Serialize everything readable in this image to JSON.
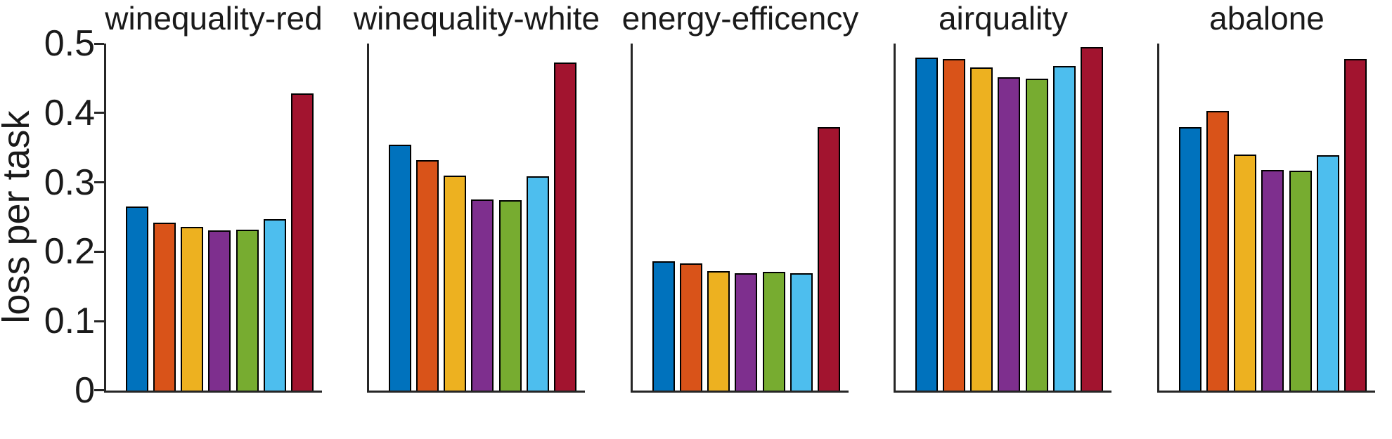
{
  "figure": {
    "ylabel": "loss per task",
    "yticks": [
      "0.5",
      "0.4",
      "0.3",
      "0.2",
      "0.1",
      "0"
    ]
  },
  "palette": {
    "bar_colors": [
      "#0072BD",
      "#D95319",
      "#EDB120",
      "#7E2F8E",
      "#77AC30",
      "#4DBEEE",
      "#A2142F"
    ],
    "bar_edge_color": "#000000",
    "axis_color": "#262626",
    "text_color": "#1a1a1a"
  },
  "chart_data": [
    {
      "type": "bar",
      "title": "winequality-red",
      "values": [
        0.265,
        0.242,
        0.236,
        0.231,
        0.232,
        0.247,
        0.428
      ],
      "ylabel": "loss per task",
      "ylim": [
        0,
        0.5
      ],
      "yticks": [
        0,
        0.1,
        0.2,
        0.3,
        0.4,
        0.5
      ],
      "grid": false,
      "legend": "none"
    },
    {
      "type": "bar",
      "title": "winequality-white",
      "values": [
        0.354,
        0.332,
        0.31,
        0.275,
        0.274,
        0.309,
        0.473
      ],
      "ylabel": "loss per task",
      "ylim": [
        0,
        0.5
      ],
      "yticks": [
        0,
        0.1,
        0.2,
        0.3,
        0.4,
        0.5
      ],
      "grid": false,
      "legend": "none"
    },
    {
      "type": "bar",
      "title": "energy-efficency",
      "values": [
        0.186,
        0.183,
        0.172,
        0.169,
        0.171,
        0.169,
        0.38
      ],
      "ylabel": "loss per task",
      "ylim": [
        0,
        0.5
      ],
      "yticks": [
        0,
        0.1,
        0.2,
        0.3,
        0.4,
        0.5
      ],
      "grid": false,
      "legend": "none"
    },
    {
      "type": "bar",
      "title": "airquality",
      "values": [
        0.48,
        0.478,
        0.466,
        0.451,
        0.449,
        0.468,
        0.495
      ],
      "ylabel": "loss per task",
      "ylim": [
        0,
        0.5
      ],
      "yticks": [
        0,
        0.1,
        0.2,
        0.3,
        0.4,
        0.5
      ],
      "grid": false,
      "legend": "none"
    },
    {
      "type": "bar",
      "title": "abalone",
      "values": [
        0.38,
        0.403,
        0.34,
        0.318,
        0.317,
        0.339,
        0.478
      ],
      "ylabel": "loss per task",
      "ylim": [
        0,
        0.5
      ],
      "yticks": [
        0,
        0.1,
        0.2,
        0.3,
        0.4,
        0.5
      ],
      "grid": false,
      "legend": "none"
    }
  ]
}
